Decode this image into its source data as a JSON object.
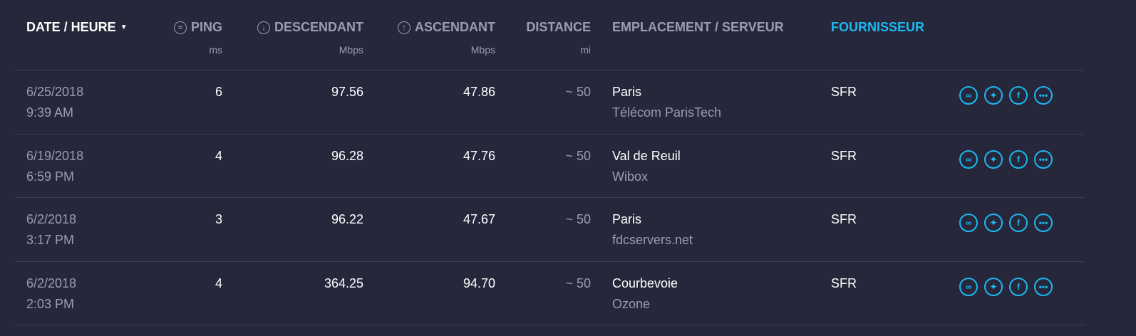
{
  "header": {
    "date": "DATE / HEURE",
    "ping": "PING",
    "ping_unit": "ms",
    "down": "DESCENDANT",
    "down_unit": "Mbps",
    "up": "ASCENDANT",
    "up_unit": "Mbps",
    "distance": "DISTANCE",
    "distance_unit": "mi",
    "location": "EMPLACEMENT / SERVEUR",
    "provider": "FOURNISSEUR",
    "sort_indicator": "▼"
  },
  "colors": {
    "background": "#26273b",
    "accent": "#1cb8f0",
    "muted": "#9a9cb3"
  },
  "icons": [
    "link-icon",
    "twitter-icon",
    "facebook-icon",
    "more-icon"
  ],
  "rows": [
    {
      "date": "6/25/2018",
      "time": "9:39 AM",
      "ping": "6",
      "down": "97.56",
      "up": "47.86",
      "distance": "~ 50",
      "location": "Paris",
      "server": "Télécom ParisTech",
      "provider": "SFR"
    },
    {
      "date": "6/19/2018",
      "time": "6:59 PM",
      "ping": "4",
      "down": "96.28",
      "up": "47.76",
      "distance": "~ 50",
      "location": "Val de Reuil",
      "server": "Wibox",
      "provider": "SFR"
    },
    {
      "date": "6/2/2018",
      "time": "3:17 PM",
      "ping": "3",
      "down": "96.22",
      "up": "47.67",
      "distance": "~ 50",
      "location": "Paris",
      "server": "fdcservers.net",
      "provider": "SFR"
    },
    {
      "date": "6/2/2018",
      "time": "2:03 PM",
      "ping": "4",
      "down": "364.25",
      "up": "94.70",
      "distance": "~ 50",
      "location": "Courbevoie",
      "server": "Ozone",
      "provider": "SFR"
    }
  ]
}
